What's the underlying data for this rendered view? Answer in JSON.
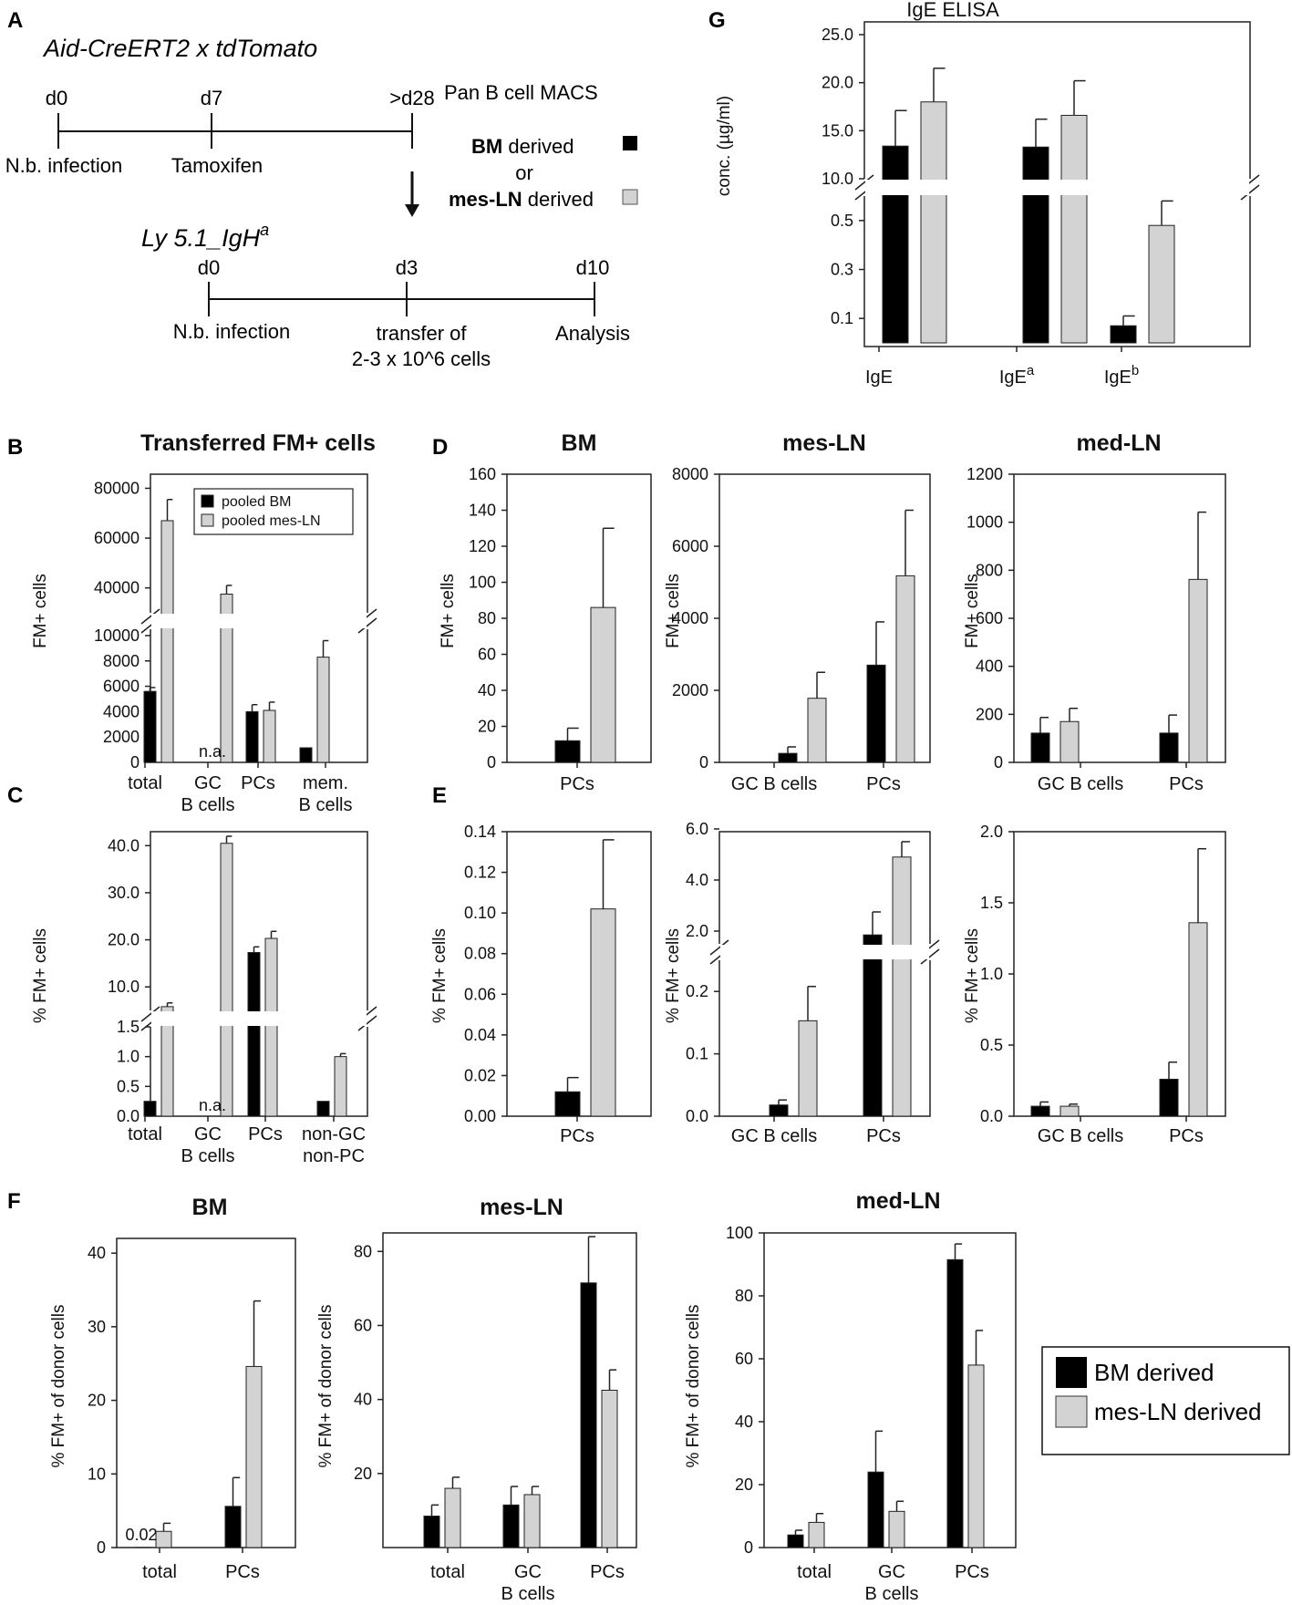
{
  "colors": {
    "bm": "#000000",
    "mesln": "#d3d3d3",
    "axis": "#222222"
  },
  "panel_letters": [
    "A",
    "B",
    "C",
    "D",
    "E",
    "F",
    "G"
  ],
  "panelA": {
    "top_mouse": "Aid-CreERT2 x tdTomato",
    "top_days": [
      "d0",
      "d7",
      ">d28"
    ],
    "top_events": [
      "N.b. infection",
      "Tamoxifen"
    ],
    "macs": "Pan B cell MACS",
    "bm_bold": "BM",
    "bm_rest": " derived",
    "or": "or",
    "mes_bold": "mes-LN",
    "mes_rest": " derived",
    "bottom_mouse": "Ly 5.1_IgH",
    "bottom_mouse_sup": "a",
    "bottom_days": [
      "d0",
      "d3",
      "d10"
    ],
    "bottom_events": [
      "N.b. infection",
      "transfer of",
      "2-3 x 10^6 cells",
      "Analysis"
    ]
  },
  "legendF": {
    "bm": "BM derived",
    "mes": "mes-LN derived"
  },
  "chart_data": [
    {
      "id": "G",
      "type": "bar",
      "title": "IgE ELISA",
      "ylabel": "conc. (µg/ml)",
      "categories": [
        "IgE",
        "IgE",
        "IgE"
      ],
      "category_sups": [
        "",
        "a",
        "b"
      ],
      "yticks_top": [
        "10.0",
        "15.0",
        "20.0",
        "25.0"
      ],
      "yticks_bottom": [
        "0.1",
        "0.3",
        "0.5"
      ],
      "axis_break": [
        0.6,
        10
      ],
      "series": [
        {
          "name": "BM derived",
          "values": [
            13.4,
            13.3,
            0.07
          ],
          "errors": [
            3.7,
            2.9,
            0.04
          ]
        },
        {
          "name": "mes-LN derived",
          "values": [
            18.0,
            16.6,
            0.48
          ],
          "errors": [
            3.5,
            3.6,
            0.1
          ]
        }
      ]
    },
    {
      "id": "B",
      "type": "bar",
      "title": "Transferred FM+ cells",
      "ylabel": "FM+ cells",
      "categories": [
        "total",
        "GC\nB cells",
        "PCs",
        "mem.\nB cells"
      ],
      "legend": [
        "pooled BM",
        "pooled mes-LN"
      ],
      "yticks_top": [
        "40000",
        "60000",
        "80000"
      ],
      "yticks_bottom": [
        "0",
        "2000",
        "4000",
        "6000",
        "8000",
        "10000"
      ],
      "axis_break": [
        10500,
        30000
      ],
      "na_label": "n.a.",
      "series": [
        {
          "name": "pooled BM",
          "values": [
            5600,
            null,
            4000,
            1150
          ],
          "errors": [
            300,
            null,
            550,
            0
          ]
        },
        {
          "name": "pooled mes-LN",
          "values": [
            67000,
            37500,
            4100,
            8300
          ],
          "errors": [
            8500,
            3500,
            650,
            1300
          ]
        }
      ]
    },
    {
      "id": "C",
      "type": "bar",
      "ylabel": "% FM+ cells",
      "categories": [
        "total",
        "GC\nB cells",
        "PCs",
        "non-GC\nnon-PC"
      ],
      "yticks_top": [
        "10.0",
        "20.0",
        "30.0",
        "40.0"
      ],
      "yticks_bottom": [
        "0.0",
        "0.5",
        "1.0",
        "1.5"
      ],
      "axis_break": [
        1.5,
        5
      ],
      "na_label": "n.a.",
      "series": [
        {
          "name": "BM derived",
          "values": [
            0.25,
            null,
            17.3,
            0.25
          ],
          "errors": [
            0,
            null,
            1.2,
            0
          ]
        },
        {
          "name": "mes-LN derived",
          "values": [
            5.8,
            40.5,
            20.3,
            1.0
          ],
          "errors": [
            0.8,
            3.0,
            1.5,
            0.05
          ]
        }
      ]
    },
    {
      "id": "D1",
      "type": "bar",
      "title": "BM",
      "ylabel": "FM+ cells",
      "categories": [
        "PCs"
      ],
      "ylim": [
        0,
        160
      ],
      "yticks": [
        "0",
        "20",
        "40",
        "60",
        "80",
        "100",
        "120",
        "140",
        "160"
      ],
      "series": [
        {
          "name": "BM derived",
          "values": [
            12
          ],
          "errors": [
            7
          ]
        },
        {
          "name": "mes-LN derived",
          "values": [
            86
          ],
          "errors": [
            44
          ]
        }
      ]
    },
    {
      "id": "D2",
      "type": "bar",
      "title": "mes-LN",
      "ylabel": "FM+ cells",
      "categories": [
        "GC B cells",
        "PCs"
      ],
      "ylim": [
        0,
        8000
      ],
      "yticks": [
        "0",
        "2000",
        "4000",
        "6000",
        "8000"
      ],
      "series": [
        {
          "name": "BM derived",
          "values": [
            250,
            2700
          ],
          "errors": [
            180,
            1200
          ]
        },
        {
          "name": "mes-LN derived",
          "values": [
            1780,
            5180
          ],
          "errors": [
            720,
            1820
          ]
        }
      ]
    },
    {
      "id": "D3",
      "type": "bar",
      "title": "med-LN",
      "ylabel": "FM+ cells",
      "categories": [
        "GC B cells",
        "PCs"
      ],
      "ylim": [
        0,
        1200
      ],
      "yticks": [
        "0",
        "200",
        "400",
        "600",
        "800",
        "1000",
        "1200"
      ],
      "series": [
        {
          "name": "BM derived",
          "values": [
            122,
            122
          ],
          "errors": [
            65,
            75
          ]
        },
        {
          "name": "mes-LN derived",
          "values": [
            170,
            762
          ],
          "errors": [
            55,
            280
          ]
        }
      ]
    },
    {
      "id": "E1",
      "type": "bar",
      "ylabel": "% FM+ cells",
      "categories": [
        "PCs"
      ],
      "ylim": [
        0,
        0.14
      ],
      "yticks": [
        "0.00",
        "0.02",
        "0.04",
        "0.06",
        "0.08",
        "0.10",
        "0.12",
        "0.14"
      ],
      "series": [
        {
          "name": "BM derived",
          "values": [
            0.012
          ],
          "errors": [
            0.007
          ]
        },
        {
          "name": "mes-LN derived",
          "values": [
            0.102
          ],
          "errors": [
            0.034
          ]
        }
      ]
    },
    {
      "id": "E2",
      "type": "bar",
      "ylabel": "% FM+ cells",
      "categories": [
        "GC B cells",
        "PCs"
      ],
      "yticks_top": [
        "2.0",
        "4.0",
        "6.0"
      ],
      "yticks_bottom": [
        "0.0",
        "0.1",
        "0.2"
      ],
      "axis_break": [
        0.25,
        1.5
      ],
      "series": [
        {
          "name": "BM derived",
          "values": [
            0.018,
            1.85
          ],
          "errors": [
            0.008,
            0.9
          ]
        },
        {
          "name": "mes-LN derived",
          "values": [
            0.153,
            4.9
          ],
          "errors": [
            0.055,
            0.6
          ]
        }
      ]
    },
    {
      "id": "E3",
      "type": "bar",
      "ylabel": "% FM+ cells",
      "categories": [
        "GC B cells",
        "PCs"
      ],
      "ylim": [
        0,
        2.0
      ],
      "yticks": [
        "0.0",
        "0.5",
        "1.0",
        "1.5",
        "2.0"
      ],
      "series": [
        {
          "name": "BM derived",
          "values": [
            0.07,
            0.26
          ],
          "errors": [
            0.03,
            0.12
          ]
        },
        {
          "name": "mes-LN derived",
          "values": [
            0.07,
            1.36
          ],
          "errors": [
            0.015,
            0.52
          ]
        }
      ]
    },
    {
      "id": "F1",
      "type": "bar",
      "title": "BM",
      "ylabel": "% FM+ of donor cells",
      "categories": [
        "total",
        "PCs"
      ],
      "ylim": [
        0,
        42
      ],
      "yticks": [
        "0",
        "10",
        "20",
        "30",
        "40"
      ],
      "value_label": "0.02",
      "series": [
        {
          "name": "BM derived",
          "values": [
            0.02,
            5.6
          ],
          "errors": [
            0,
            3.9
          ]
        },
        {
          "name": "mes-LN derived",
          "values": [
            2.2,
            24.6
          ],
          "errors": [
            1.1,
            8.9
          ]
        }
      ]
    },
    {
      "id": "F2",
      "type": "bar",
      "title": "mes-LN",
      "ylabel": "% FM+ of donor cells",
      "categories": [
        "total",
        "GC\nB cells",
        "PCs"
      ],
      "ylim": [
        0,
        85
      ],
      "yticks": [
        "20",
        "40",
        "60",
        "80"
      ],
      "series": [
        {
          "name": "BM derived",
          "values": [
            8.5,
            11.5,
            71.5
          ],
          "errors": [
            3,
            5,
            12.5
          ]
        },
        {
          "name": "mes-LN derived",
          "values": [
            16,
            14.3,
            42.5
          ],
          "errors": [
            3,
            2.2,
            5.5
          ]
        }
      ]
    },
    {
      "id": "F3",
      "type": "bar",
      "title": "med-LN",
      "ylabel": "% FM+ of donor cells",
      "categories": [
        "total",
        "GC\nB cells",
        "PCs"
      ],
      "ylim": [
        0,
        100
      ],
      "yticks": [
        "0",
        "20",
        "40",
        "60",
        "80",
        "100"
      ],
      "series": [
        {
          "name": "BM derived",
          "values": [
            4,
            24,
            91.5
          ],
          "errors": [
            1.5,
            13,
            5
          ]
        },
        {
          "name": "mes-LN derived",
          "values": [
            8,
            11.5,
            58
          ],
          "errors": [
            2.8,
            3.2,
            11
          ]
        }
      ]
    }
  ]
}
